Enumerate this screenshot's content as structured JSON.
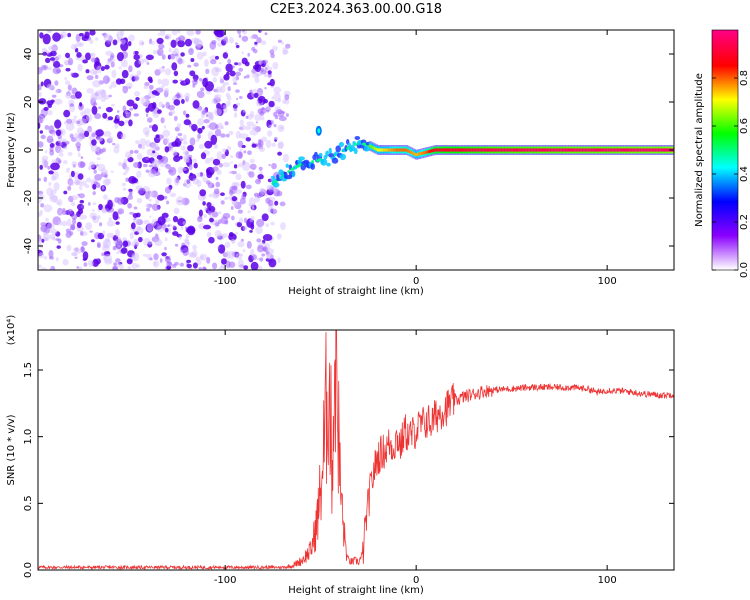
{
  "title": "C2E3.2024.363.00.00.G18",
  "chart_data": [
    {
      "type": "heatmap",
      "xlabel": "Height of straight line (km)",
      "ylabel": "Frequency (Hz)",
      "xlim": [
        -198,
        135
      ],
      "ylim": [
        -50,
        50
      ],
      "xticks": [
        -100,
        0,
        100
      ],
      "xtick_labels": [
        "-100",
        "0",
        "100"
      ],
      "yticks": [
        -40,
        -20,
        0,
        20,
        40
      ],
      "ytick_labels": [
        "-40",
        "-20",
        "0",
        "20",
        "40"
      ],
      "colorbar": {
        "label": "Normalized spectral amplitude",
        "range": [
          0,
          1
        ],
        "ticks": [
          0.0,
          0.2,
          0.4,
          0.6,
          0.8
        ],
        "tick_labels": [
          "0.0",
          "0.2",
          "0.4",
          "0.6",
          "0.8"
        ],
        "colormap": [
          "#ffffff",
          "#8a00ff",
          "#0000ff",
          "#00ffff",
          "#00ff00",
          "#ffff00",
          "#ff0000",
          "#ff0080"
        ]
      },
      "noise_region_x": [
        -198,
        -75
      ],
      "signal_trace": {
        "x": [
          -75,
          -70,
          -65,
          -60,
          -55,
          -50,
          -45,
          -40,
          -35,
          -30,
          -25,
          -20,
          -15,
          -10,
          -5,
          0,
          5,
          10,
          20,
          40,
          60,
          80,
          100,
          120,
          135
        ],
        "y": [
          -14,
          -11,
          -8,
          -6,
          -5,
          -4,
          -3,
          -1,
          1,
          3,
          2,
          0,
          0,
          0,
          0,
          -2,
          -1,
          0,
          0,
          0,
          0,
          0,
          0,
          0,
          0
        ],
        "amplitude": [
          0.2,
          0.25,
          0.3,
          0.3,
          0.35,
          0.35,
          0.4,
          0.4,
          0.45,
          0.5,
          0.6,
          0.7,
          0.75,
          0.8,
          0.8,
          0.75,
          0.8,
          0.9,
          0.92,
          0.95,
          0.96,
          0.97,
          0.97,
          0.98,
          0.98
        ]
      }
    },
    {
      "type": "line",
      "xlabel": "Height of straight line (km)",
      "ylabel": "SNR (10 * v/v)",
      "scale_label": "(x10⁴)",
      "xlim": [
        -198,
        135
      ],
      "ylim": [
        0,
        1.8
      ],
      "xticks": [
        -100,
        0,
        100
      ],
      "xtick_labels": [
        "-100",
        "0",
        "100"
      ],
      "yticks": [
        0.0,
        0.5,
        1.0,
        1.5
      ],
      "ytick_labels": [
        "0.0",
        "0.5",
        "1.0",
        "1.5"
      ],
      "grid": false,
      "color": "#ee3333",
      "series": [
        {
          "x": [
            -198,
            -180,
            -160,
            -140,
            -120,
            -100,
            -90,
            -80,
            -70,
            -65,
            -60,
            -55,
            -52,
            -50,
            -48,
            -46,
            -44,
            -42,
            -40,
            -38,
            -36,
            -34,
            -32,
            -30,
            -28,
            -26,
            -24,
            -22,
            -20,
            -18,
            -16,
            -14,
            -12,
            -10,
            -8,
            -6,
            -4,
            -2,
            0,
            2,
            4,
            6,
            8,
            10,
            12,
            14,
            16,
            18,
            20,
            22,
            25,
            30,
            35,
            40,
            50,
            60,
            70,
            80,
            90,
            95,
            100,
            110,
            120,
            130,
            135
          ],
          "y": [
            0.02,
            0.02,
            0.02,
            0.02,
            0.02,
            0.02,
            0.02,
            0.02,
            0.02,
            0.03,
            0.07,
            0.15,
            0.35,
            0.6,
            0.95,
            1.5,
            0.8,
            1.8,
            0.7,
            0.3,
            0.08,
            0.06,
            0.07,
            0.06,
            0.12,
            0.4,
            0.6,
            0.75,
            0.85,
            0.88,
            0.9,
            0.95,
            0.92,
            1.0,
            0.93,
            1.05,
            1.0,
            1.02,
            1.05,
            1.08,
            1.1,
            1.12,
            1.1,
            1.15,
            1.18,
            1.2,
            1.22,
            1.25,
            1.27,
            1.28,
            1.3,
            1.32,
            1.34,
            1.35,
            1.36,
            1.37,
            1.37,
            1.37,
            1.36,
            1.33,
            1.35,
            1.34,
            1.32,
            1.31,
            1.32
          ]
        }
      ]
    }
  ]
}
